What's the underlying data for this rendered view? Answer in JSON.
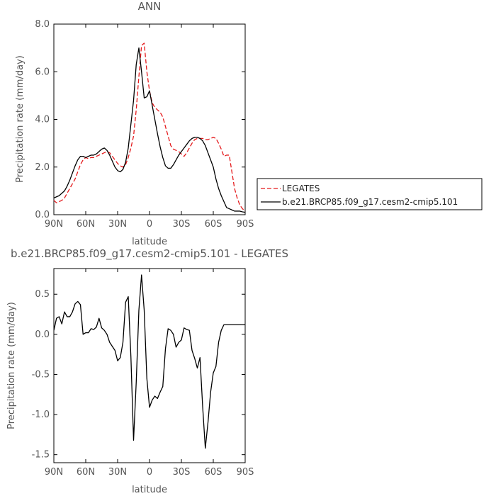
{
  "chart_data": [
    {
      "type": "line",
      "title": "ANN",
      "xlabel": "latitude",
      "ylabel": "Precipitation rate (mm/day)",
      "xlim": [
        90,
        -90
      ],
      "ylim": [
        0,
        8
      ],
      "xticks": [
        90,
        60,
        30,
        0,
        -30,
        -60,
        -90
      ],
      "xtick_labels": [
        "90N",
        "60N",
        "30N",
        "0",
        "30S",
        "60S",
        "90S"
      ],
      "yticks": [
        0,
        2,
        4,
        6,
        8
      ],
      "ytick_labels": [
        "0.0",
        "2.0",
        "4.0",
        "6.0",
        "8.0"
      ],
      "legend_position": "right",
      "series": [
        {
          "name": "LEGATES",
          "color": "#e41a1c",
          "dash": "dashed",
          "x": [
            90,
            87.5,
            85,
            82.5,
            80,
            77.5,
            75,
            72.5,
            70,
            67.5,
            65,
            62.5,
            60,
            57.5,
            55,
            52.5,
            50,
            47.5,
            45,
            42.5,
            40,
            37.5,
            35,
            32.5,
            30,
            27.5,
            25,
            22.5,
            20,
            17.5,
            15,
            12.5,
            10,
            7.5,
            5,
            2.5,
            0,
            -2.5,
            -5,
            -7.5,
            -10,
            -12.5,
            -15,
            -17.5,
            -20,
            -22.5,
            -25,
            -27.5,
            -30,
            -32.5,
            -35,
            -37.5,
            -40,
            -42.5,
            -45,
            -47.5,
            -50,
            -52.5,
            -55,
            -57.5,
            -60,
            -62.5,
            -65,
            -67.5,
            -70,
            -72.5,
            -75,
            -77.5,
            -80,
            -82.5,
            -85,
            -87.5,
            -90
          ],
          "y": [
            0.6,
            0.5,
            0.55,
            0.6,
            0.7,
            0.9,
            1.1,
            1.3,
            1.5,
            1.8,
            2.1,
            2.3,
            2.4,
            2.35,
            2.4,
            2.4,
            2.45,
            2.5,
            2.55,
            2.6,
            2.65,
            2.6,
            2.45,
            2.3,
            2.15,
            2.05,
            2.0,
            2.1,
            2.4,
            2.8,
            3.3,
            4.4,
            5.8,
            7.1,
            7.2,
            6.0,
            5.2,
            4.7,
            4.5,
            4.4,
            4.3,
            4.1,
            3.7,
            3.3,
            2.9,
            2.75,
            2.7,
            2.65,
            2.55,
            2.45,
            2.6,
            2.8,
            3.0,
            3.15,
            3.2,
            3.2,
            3.2,
            3.15,
            3.15,
            3.2,
            3.25,
            3.2,
            3.0,
            2.75,
            2.45,
            2.5,
            2.5,
            1.8,
            1.1,
            0.7,
            0.4,
            0.25,
            0.15
          ]
        },
        {
          "name": "b.e21.BRCP85.f09_g17.cesm2-cmip5.101",
          "color": "#000000",
          "dash": "solid",
          "x": [
            90,
            87.5,
            85,
            82.5,
            80,
            77.5,
            75,
            72.5,
            70,
            67.5,
            65,
            62.5,
            60,
            57.5,
            55,
            52.5,
            50,
            47.5,
            45,
            42.5,
            40,
            37.5,
            35,
            32.5,
            30,
            27.5,
            25,
            22.5,
            20,
            17.5,
            15,
            12.5,
            10,
            7.5,
            5,
            2.5,
            0,
            -2.5,
            -5,
            -7.5,
            -10,
            -12.5,
            -15,
            -17.5,
            -20,
            -22.5,
            -25,
            -27.5,
            -30,
            -32.5,
            -35,
            -37.5,
            -40,
            -42.5,
            -45,
            -47.5,
            -50,
            -52.5,
            -55,
            -57.5,
            -60,
            -62.5,
            -65,
            -67.5,
            -70,
            -72.5,
            -75,
            -77.5,
            -80,
            -82.5,
            -85,
            -87.5,
            -90
          ],
          "y": [
            0.7,
            0.75,
            0.8,
            0.9,
            1.0,
            1.2,
            1.45,
            1.75,
            2.05,
            2.3,
            2.45,
            2.45,
            2.4,
            2.45,
            2.5,
            2.5,
            2.55,
            2.65,
            2.75,
            2.8,
            2.7,
            2.5,
            2.25,
            2.0,
            1.85,
            1.8,
            1.9,
            2.2,
            2.8,
            3.8,
            4.8,
            6.3,
            7.0,
            6.0,
            4.9,
            4.95,
            5.2,
            4.6,
            4.0,
            3.4,
            2.85,
            2.4,
            2.05,
            1.95,
            1.95,
            2.1,
            2.3,
            2.5,
            2.65,
            2.8,
            2.95,
            3.1,
            3.2,
            3.25,
            3.25,
            3.2,
            3.1,
            2.9,
            2.6,
            2.3,
            2.0,
            1.5,
            1.1,
            0.8,
            0.55,
            0.3,
            0.25,
            0.2,
            0.15,
            0.15,
            0.15,
            0.12,
            0.1
          ]
        }
      ]
    },
    {
      "type": "line",
      "title": "b.e21.BRCP85.f09_g17.cesm2-cmip5.101 - LEGATES",
      "xlabel": "latitude",
      "ylabel": "Precipitation rate (mm/day)",
      "xlim": [
        90,
        -90
      ],
      "ylim": [
        -1.6,
        0.82
      ],
      "xticks": [
        90,
        60,
        30,
        0,
        -30,
        -60,
        -90
      ],
      "xtick_labels": [
        "90N",
        "60N",
        "30N",
        "0",
        "30S",
        "60S",
        "90S"
      ],
      "yticks": [
        0.5,
        0,
        -0.5,
        -1.0,
        -1.5
      ],
      "ytick_labels": [
        "0.5",
        "0.0",
        "-0.5",
        "-1.0",
        "-1.5"
      ],
      "series": [
        {
          "color": "#000000",
          "dash": "solid",
          "x": [
            90,
            87.5,
            85,
            82.5,
            80,
            77.5,
            75,
            72.5,
            70,
            67.5,
            65,
            62.5,
            60,
            57.5,
            55,
            52.5,
            50,
            47.5,
            45,
            42.5,
            40,
            37.5,
            35,
            32.5,
            30,
            27.5,
            25,
            22.5,
            20,
            17.5,
            15,
            12.5,
            10,
            7.5,
            5,
            2.5,
            0,
            -2.5,
            -5,
            -7.5,
            -10,
            -12.5,
            -15,
            -17.5,
            -20,
            -22.5,
            -25,
            -27.5,
            -30,
            -32.5,
            -35,
            -37.5,
            -40,
            -42.5,
            -45,
            -47.5,
            -50,
            -52.5,
            -55,
            -57.5,
            -60,
            -62.5,
            -65,
            -67.5,
            -70,
            -72.5,
            -75,
            -77.5,
            -80,
            -82.5,
            -85,
            -87.5,
            -90
          ],
          "y": [
            0.05,
            0.2,
            0.22,
            0.13,
            0.28,
            0.22,
            0.22,
            0.28,
            0.38,
            0.41,
            0.37,
            0.0,
            0.02,
            0.02,
            0.07,
            0.06,
            0.09,
            0.2,
            0.08,
            0.05,
            0.0,
            -0.1,
            -0.15,
            -0.2,
            -0.33,
            -0.29,
            -0.1,
            0.4,
            0.47,
            -0.28,
            -1.32,
            -0.6,
            0.3,
            0.74,
            0.3,
            -0.55,
            -0.91,
            -0.82,
            -0.77,
            -0.8,
            -0.72,
            -0.65,
            -0.18,
            0.07,
            0.05,
            0.0,
            -0.16,
            -0.1,
            -0.07,
            0.08,
            0.06,
            0.05,
            -0.2,
            -0.3,
            -0.42,
            -0.29,
            -0.9,
            -1.42,
            -1.1,
            -0.72,
            -0.48,
            -0.4,
            -0.1,
            0.05,
            0.12,
            0.12,
            0.12,
            0.12,
            0.12,
            0.12,
            0.12,
            0.12,
            0.12
          ]
        }
      ]
    }
  ]
}
